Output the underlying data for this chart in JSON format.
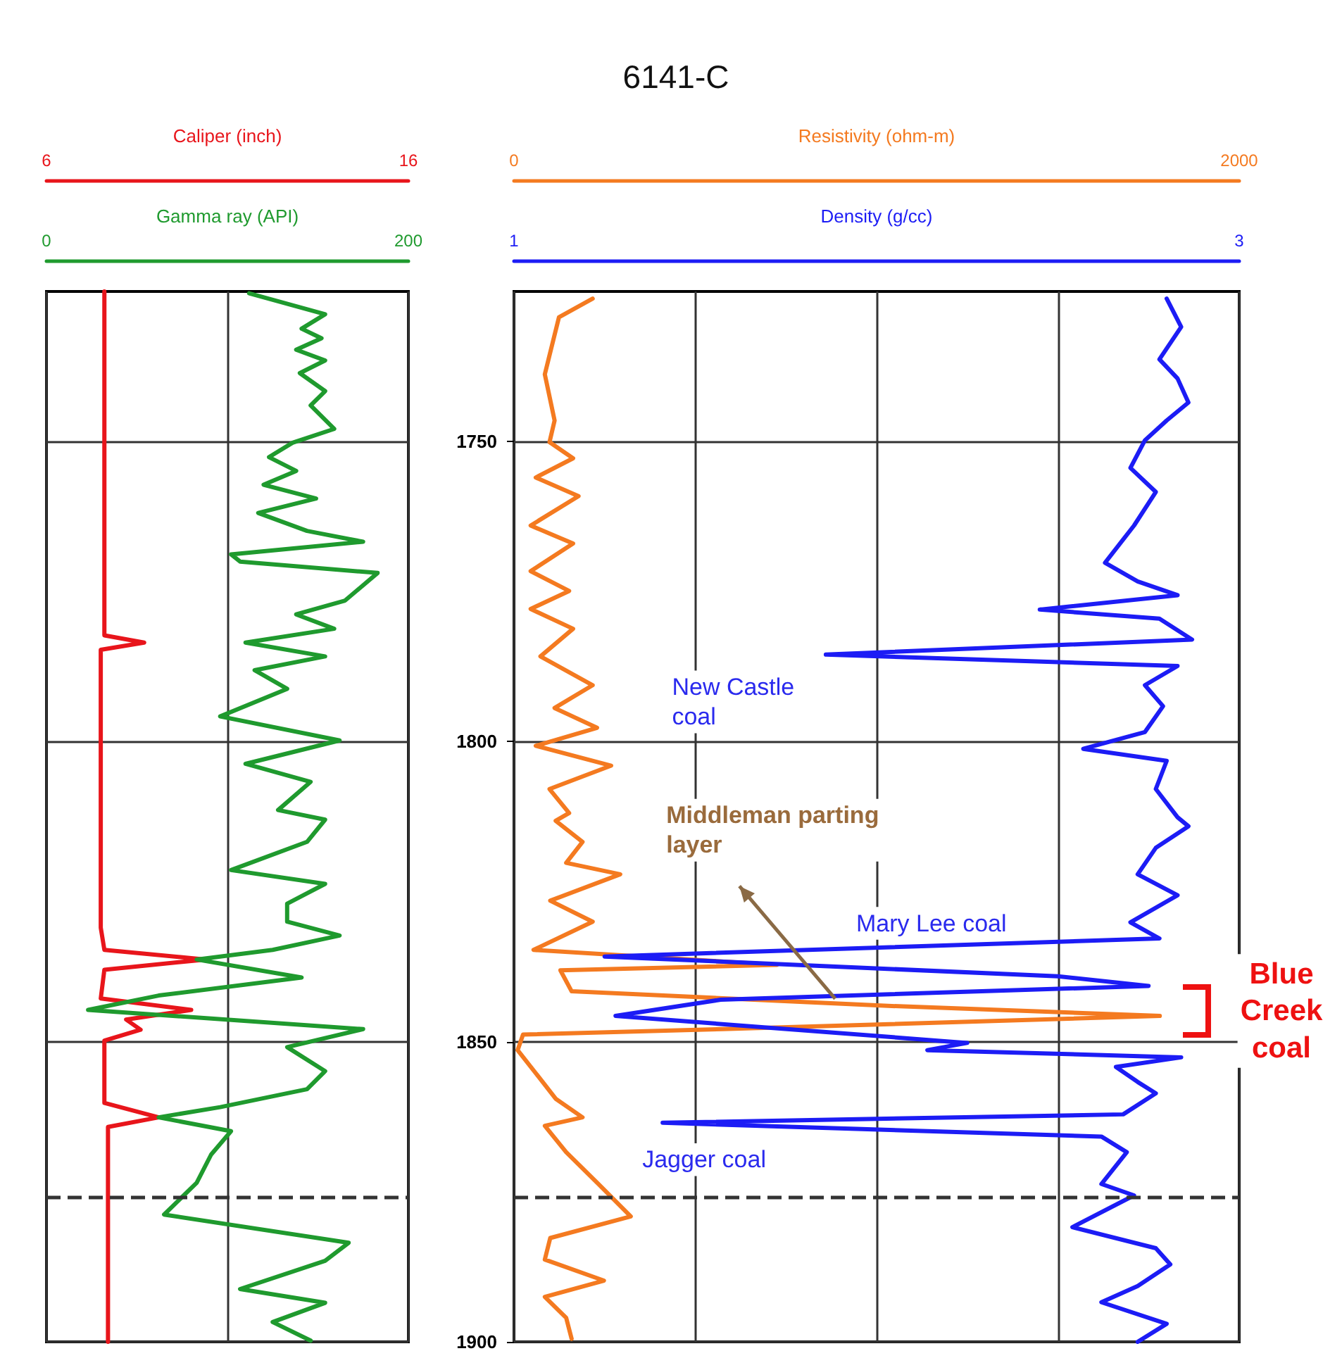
{
  "chart_data": [
    {
      "type": "line",
      "xlabel": "Caliper (inch)",
      "xlim": [
        6,
        16
      ],
      "xticks": [
        6,
        {
          "value": 11,
          "label": null
        },
        16
      ],
      "x2label": "Gamma ray (API)",
      "x2lim": [
        0,
        200
      ],
      "x2ticks": [
        0,
        200
      ],
      "ylim": [
        1900,
        1725
      ],
      "yticks": [
        1750,
        1800,
        1850,
        1900
      ],
      "tick_labels": "x",
      "grid": true,
      "marker": "none",
      "ref_lines": [
        {
          "axis": "y",
          "value": 1876,
          "color": "#333333",
          "line_style": "dashed"
        }
      ],
      "series": [
        {
          "color": "#e8151b",
          "x": [
            7.6,
            7.6,
            8.7,
            7.5,
            7.5,
            7.6,
            10.4,
            7.6,
            7.5,
            10.0,
            8.2,
            8.6,
            7.6,
            7.6,
            9.1,
            7.7,
            7.7
          ],
          "values": [
            1725,
            1782.3,
            1783.5,
            1784.7,
            1831,
            1834.7,
            1836.3,
            1838,
            1842.8,
            1844.7,
            1846.3,
            1848,
            1849.8,
            1860.2,
            1862.6,
            1864.2,
            1900
          ]
        },
        {
          "color": "#1f9a2e",
          "axis": "x2",
          "x": [
            112,
            154,
            141,
            152,
            138,
            154,
            140,
            154,
            146,
            159,
            136,
            123,
            138,
            120,
            149,
            117,
            144,
            175,
            102,
            107,
            183,
            165,
            138,
            159,
            110,
            154,
            115,
            133,
            96,
            162,
            110,
            146,
            128,
            154,
            144,
            102,
            154,
            133,
            133,
            162,
            125,
            83,
            141,
            62,
            23,
            175,
            133,
            154,
            144,
            96,
            62,
            102,
            91,
            83,
            65,
            167,
            154,
            107,
            154,
            125,
            146
          ],
          "values": [
            1725.3,
            1728.8,
            1731.2,
            1732.8,
            1734.7,
            1736.5,
            1738.6,
            1741.6,
            1744,
            1747.9,
            1750.2,
            1752.6,
            1754.9,
            1757.2,
            1759.5,
            1761.9,
            1764.9,
            1766.7,
            1768.8,
            1770,
            1771.9,
            1776.5,
            1778.8,
            1781.2,
            1783.5,
            1785.8,
            1788.1,
            1791.2,
            1795.8,
            1799.8,
            1803.7,
            1806.7,
            1811.4,
            1813,
            1816.7,
            1821.4,
            1823.7,
            1827,
            1830,
            1832.3,
            1834.7,
            1836.3,
            1839.3,
            1842.3,
            1844.7,
            1847.9,
            1850.9,
            1854.9,
            1857.9,
            1860.9,
            1862.6,
            1864.9,
            1868.8,
            1873.5,
            1878.8,
            1883.5,
            1886.5,
            1891.2,
            1893.5,
            1896.7,
            1899.8
          ]
        }
      ]
    },
    {
      "type": "line",
      "title": "6141-C",
      "xlabel": "Resistivity (ohm-m)",
      "xlim": [
        0,
        2000
      ],
      "xticks": [
        0,
        {
          "value": 500,
          "label": null
        },
        {
          "value": 1000,
          "label": null
        },
        {
          "value": 1500,
          "label": null
        },
        2000
      ],
      "x2label": "Density (g/cc)",
      "x2lim": [
        1,
        3
      ],
      "x2ticks": [
        1,
        3
      ],
      "ylim": [
        1900,
        1725
      ],
      "yticks": [
        1750,
        1800,
        1850,
        1900
      ],
      "grid": true,
      "marker": "none",
      "ref_lines": [
        {
          "axis": "y",
          "value": 1876,
          "color": "#333333",
          "line_style": "dashed"
        }
      ],
      "annotations": [
        "New Castle\ncoal",
        "Middleman parting\nlayer",
        "Mary Lee coal",
        "Jagger coal",
        "Blue\nCreek\ncoal"
      ],
      "series": [
        {
          "color": "#f47a20",
          "x": [
            217,
            124,
            85,
            112,
            98,
            163,
            60,
            178,
            46,
            163,
            46,
            152,
            46,
            163,
            73,
            217,
            112,
            229,
            60,
            268,
            98,
            152,
            115,
            189,
            144,
            293,
            100,
            217,
            54,
            725,
            128,
            159,
            1021,
            1781,
            575,
            25,
            10,
            70,
            115,
            189,
            85,
            144,
            233,
            322,
            100,
            85,
            248,
            85,
            144,
            159
          ],
          "values": [
            1726.2,
            1729.3,
            1738.8,
            1746.5,
            1750.1,
            1752.8,
            1756,
            1759.1,
            1764,
            1767,
            1771.6,
            1774.9,
            1777.9,
            1781.2,
            1785.8,
            1790.6,
            1794.4,
            1797.7,
            1800.7,
            1804,
            1807.9,
            1811.9,
            1813.2,
            1816.7,
            1820.2,
            1822.1,
            1826.5,
            1830,
            1834.7,
            1837.2,
            1838.1,
            1841.6,
            1844,
            1845.7,
            1847.9,
            1848.8,
            1851.4,
            1856,
            1859.5,
            1862.6,
            1864,
            1868.4,
            1873.7,
            1879.1,
            1882.7,
            1886.3,
            1889.8,
            1892.5,
            1896,
            1899.5
          ]
        },
        {
          "color": "#1c1cf5",
          "axis": "x2",
          "x": [
            2.8,
            2.84,
            2.78,
            2.83,
            2.86,
            2.8,
            2.74,
            2.7,
            2.77,
            2.71,
            2.63,
            2.72,
            2.83,
            2.45,
            2.78,
            2.87,
            1.86,
            2.83,
            2.74,
            2.79,
            2.74,
            2.57,
            2.8,
            2.77,
            2.83,
            2.86,
            2.77,
            2.72,
            2.83,
            2.7,
            2.78,
            1.25,
            2.5,
            2.75,
            1.57,
            1.28,
            2.25,
            2.14,
            2.84,
            2.66,
            2.72,
            2.77,
            2.68,
            1.41,
            2.62,
            2.69,
            2.62,
            2.71,
            2.54,
            2.77,
            2.81,
            2.72,
            2.62,
            2.8,
            2.72
          ],
          "values": [
            1726.2,
            1730.9,
            1736.3,
            1739.5,
            1743.5,
            1746.5,
            1749.8,
            1754.4,
            1758.4,
            1764,
            1770.2,
            1773.3,
            1775.6,
            1778,
            1779.5,
            1783,
            1785.5,
            1787.4,
            1790.6,
            1794.1,
            1798.4,
            1801.2,
            1803.2,
            1807.9,
            1812.6,
            1814.1,
            1817.7,
            1822.1,
            1825.6,
            1830.1,
            1832.8,
            1835.8,
            1839.1,
            1840.7,
            1843,
            1845.7,
            1850.2,
            1851.4,
            1852.6,
            1854.2,
            1856.7,
            1858.6,
            1862.1,
            1863.5,
            1865.8,
            1868.4,
            1873.7,
            1875.6,
            1880.9,
            1884.4,
            1887.1,
            1890.7,
            1893.4,
            1897,
            1900
          ]
        }
      ]
    }
  ]
}
